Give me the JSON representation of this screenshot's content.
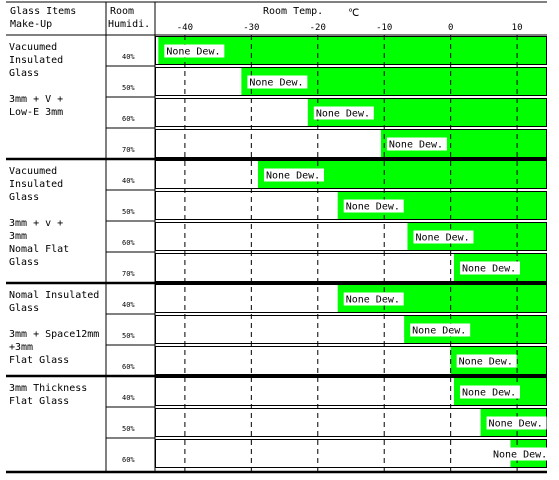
{
  "header": {
    "col1_line1": "Glass Items",
    "col1_line2": "Make-Up",
    "col2_line1": "Room",
    "col2_line2": "Humidi.",
    "col3_title": "Room Temp.",
    "col3_unit": "℃"
  },
  "groups": [
    {
      "lines": [
        "Vacuumed",
        "Insulated",
        "Glass",
        "",
        "3mm + V +",
        "Low-E 3mm"
      ]
    },
    {
      "lines": [
        "Vacuumed",
        "Insulated",
        "Glass",
        "",
        "3mm + v +",
        "3mm",
        "Nomal Flat",
        "Glass"
      ]
    },
    {
      "lines": [
        "Nomal Insulated",
        "Glass",
        "",
        "3mm + Space12mm",
        "+3mm",
        "Flat Glass"
      ]
    },
    {
      "lines": [
        "3mm Thickness",
        "Flat Glass"
      ]
    }
  ],
  "chart_data": {
    "type": "bar",
    "orientation": "horizontal",
    "x_axis": {
      "label": "Room Temp.",
      "unit": "℃",
      "ticks": [
        -40,
        -30,
        -20,
        -10,
        0,
        10
      ],
      "range": [
        -44.5,
        14.5
      ]
    },
    "bar_label": "None Dew.",
    "colors": {
      "dew_free": "#00ff00",
      "bar_border": "#000000",
      "background": "#ffffff"
    },
    "rows": [
      {
        "group": 0,
        "humidity": "40%",
        "threshold": -44.0
      },
      {
        "group": 0,
        "humidity": "50%",
        "threshold": -31.5
      },
      {
        "group": 0,
        "humidity": "60%",
        "threshold": -21.5
      },
      {
        "group": 0,
        "humidity": "70%",
        "threshold": -10.5
      },
      {
        "group": 1,
        "humidity": "40%",
        "threshold": -29.0
      },
      {
        "group": 1,
        "humidity": "50%",
        "threshold": -17.0
      },
      {
        "group": 1,
        "humidity": "60%",
        "threshold": -6.5
      },
      {
        "group": 1,
        "humidity": "70%",
        "threshold": 0.5
      },
      {
        "group": 2,
        "humidity": "40%",
        "threshold": -17.0
      },
      {
        "group": 2,
        "humidity": "50%",
        "threshold": -7.0
      },
      {
        "group": 2,
        "humidity": "60%",
        "threshold": 0.0
      },
      {
        "group": 3,
        "humidity": "40%",
        "threshold": 0.5
      },
      {
        "group": 3,
        "humidity": "50%",
        "threshold": 4.5
      },
      {
        "group": 3,
        "humidity": "60%",
        "threshold": 9.0
      }
    ]
  }
}
